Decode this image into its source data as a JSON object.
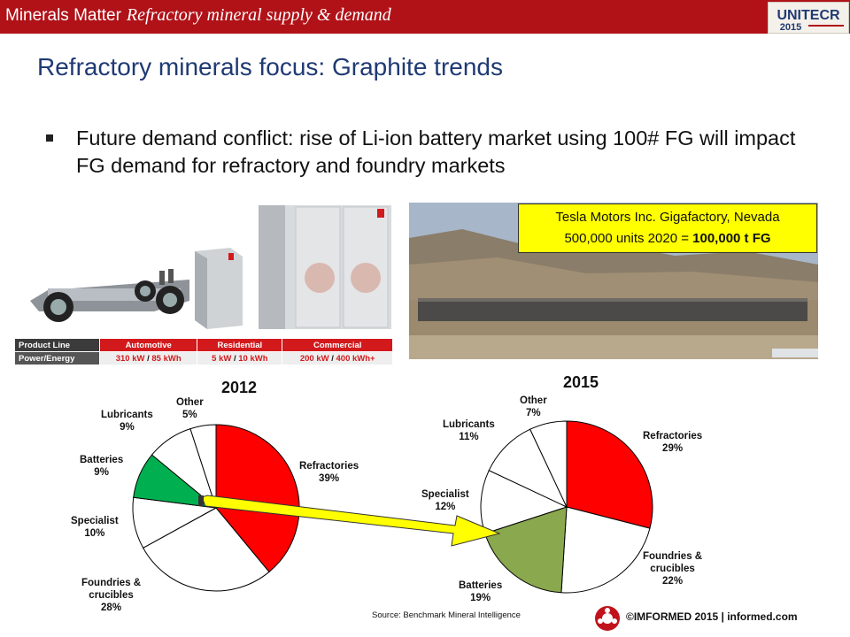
{
  "header": {
    "brand": "Minerals Matter",
    "subtitle": "Refractory mineral supply & demand",
    "logo_text": "UNITECR",
    "logo_year": "2015"
  },
  "slide": {
    "title": "Refractory minerals focus: Graphite trends",
    "bullet": "Future demand conflict: rise of Li-ion battery market using 100# FG will impact FG demand for refractory and foundry markets"
  },
  "spec_table": {
    "headers": [
      "Product Line",
      "Automotive",
      "Residential",
      "Commercial"
    ],
    "row": {
      "label": "Power/Energy",
      "automotive": [
        "310 kW",
        " / ",
        "85 kWh"
      ],
      "residential": [
        "5 kW",
        " / ",
        "10 kWh"
      ],
      "commercial": [
        "200 kW",
        " / ",
        "400 kWh+"
      ]
    }
  },
  "callout": {
    "line1": "Tesla Motors Inc. Gigafactory, Nevada",
    "line2_prefix": "500,000 units 2020 = ",
    "line2_bold": "100,000 t FG"
  },
  "colors": {
    "brand_red": "#b01218",
    "title_blue": "#1f3a73",
    "refractories": "#ff0000",
    "batteries_2012": "#00b050",
    "batteries_2015": "#8aa84e",
    "other_slices": "#ffffff",
    "arrow": "#ffff00",
    "callout_bg": "#ffff00"
  },
  "chart_data": [
    {
      "type": "pie",
      "title": "2012",
      "categories": [
        "Refractories",
        "Foundries & crucibles",
        "Specialist",
        "Batteries",
        "Lubricants",
        "Other"
      ],
      "values": [
        39,
        28,
        10,
        9,
        9,
        5
      ],
      "labels": [
        "39%",
        "28%",
        "10%",
        "9%",
        "9%",
        "5%"
      ]
    },
    {
      "type": "pie",
      "title": "2015",
      "categories": [
        "Refractories",
        "Foundries & crucibles",
        "Batteries",
        "Specialist",
        "Lubricants",
        "Other"
      ],
      "values": [
        29,
        22,
        19,
        12,
        11,
        7
      ],
      "labels": [
        "29%",
        "22%",
        "19%",
        "12%",
        "11%",
        "7%"
      ]
    }
  ],
  "footer": {
    "source": "Source: Benchmark Mineral Intelligence",
    "copyright": "©IMFORMED 2015  | informed.com"
  }
}
